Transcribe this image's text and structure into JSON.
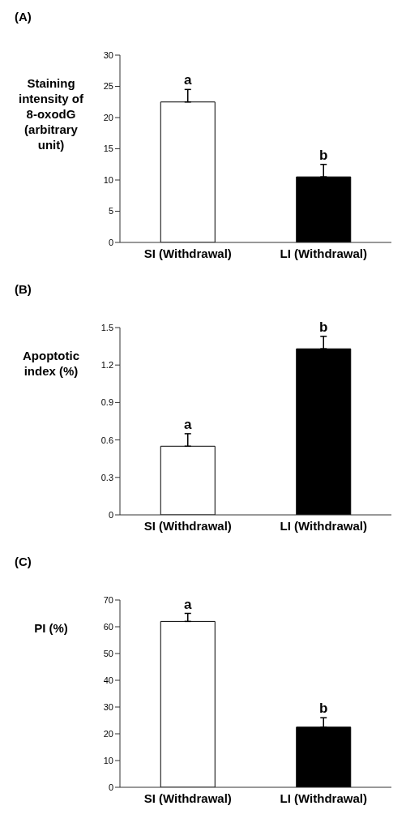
{
  "chart_data": [
    {
      "type": "bar",
      "title": "(A)",
      "ylabel": "Staining intensity of 8-oxodG (arbitrary unit)",
      "categories": [
        "SI (Withdrawal)",
        "LI (Withdrawal)"
      ],
      "values": [
        22.5,
        10.5
      ],
      "errors": [
        [
          22.5,
          24.5
        ],
        [
          10.5,
          12.5
        ]
      ],
      "colors": [
        "#ffffff",
        "#000000"
      ],
      "ylim": [
        0,
        30
      ],
      "yticks": [
        0,
        5,
        10,
        15,
        20,
        25,
        30
      ],
      "grid": false,
      "annotations": [
        {
          "text": "a",
          "x": "SI (Withdrawal)",
          "y": 24.5
        },
        {
          "text": "b",
          "x": "LI (Withdrawal)",
          "y": 12.5
        }
      ]
    },
    {
      "type": "bar",
      "title": "(B)",
      "ylabel": "Apoptotic index (%)",
      "categories": [
        "SI (Withdrawal)",
        "LI (Withdrawal)"
      ],
      "values": [
        0.55,
        1.33
      ],
      "errors": [
        [
          0.55,
          0.65
        ],
        [
          1.33,
          1.43
        ]
      ],
      "colors": [
        "#ffffff",
        "#000000"
      ],
      "ylim": [
        0,
        1.5
      ],
      "yticks": [
        0,
        0.3,
        0.6,
        0.9,
        1.2,
        1.5
      ],
      "grid": false,
      "annotations": [
        {
          "text": "a",
          "x": "SI (Withdrawal)",
          "y": 0.65
        },
        {
          "text": "b",
          "x": "LI (Withdrawal)",
          "y": 1.43
        }
      ]
    },
    {
      "type": "bar",
      "title": "(C)",
      "ylabel": "PI (%)",
      "categories": [
        "SI (Withdrawal)",
        "LI (Withdrawal)"
      ],
      "values": [
        62,
        22.5
      ],
      "errors": [
        [
          62,
          65
        ],
        [
          22.5,
          26
        ]
      ],
      "colors": [
        "#ffffff",
        "#000000"
      ],
      "ylim": [
        0,
        70
      ],
      "yticks": [
        0,
        10,
        20,
        30,
        40,
        50,
        60,
        70
      ],
      "grid": false,
      "annotations": [
        {
          "text": "a",
          "x": "SI (Withdrawal)",
          "y": 65
        },
        {
          "text": "b",
          "x": "LI (Withdrawal)",
          "y": 26
        }
      ]
    }
  ]
}
